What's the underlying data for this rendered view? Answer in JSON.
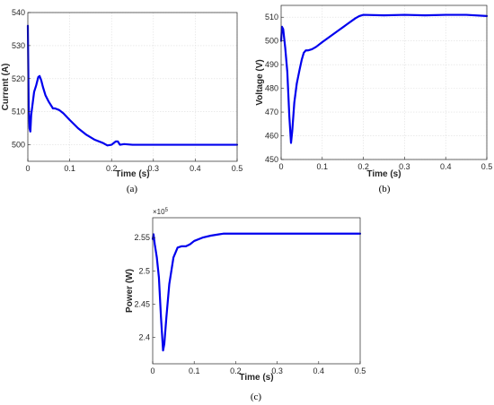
{
  "colors": {
    "series": "#0000ee",
    "axis": "#262626",
    "grid": "#dedede"
  },
  "chart_data": [
    {
      "type": "line",
      "caption": "(a)",
      "xlabel": "Time (s)",
      "ylabel": "Current (A)",
      "xlim": [
        0,
        0.5
      ],
      "ylim": [
        495,
        540
      ],
      "xticks": [
        0,
        0.1,
        0.2,
        0.3,
        0.4,
        0.5
      ],
      "xtick_labels": [
        "0",
        "0.1",
        "0.2",
        "0.3",
        "0.4",
        "0.5"
      ],
      "yticks": [
        500,
        510,
        520,
        530,
        540
      ],
      "ytick_labels": [
        "500",
        "510",
        "520",
        "530",
        "540"
      ],
      "grid": true,
      "exponent": null,
      "series": [
        {
          "x": [
            0,
            0.002,
            0.004,
            0.006,
            0.008,
            0.011,
            0.015,
            0.02,
            0.025,
            0.028,
            0.032,
            0.036,
            0.042,
            0.05,
            0.06,
            0.065,
            0.075,
            0.085,
            0.1,
            0.12,
            0.14,
            0.16,
            0.18,
            0.19,
            0.2,
            0.21,
            0.215,
            0.22,
            0.23,
            0.25,
            0.3,
            0.35,
            0.4,
            0.45,
            0.5
          ],
          "y": [
            536,
            512,
            505,
            504,
            509,
            512,
            516,
            518,
            520.5,
            520.8,
            519.5,
            517.5,
            515,
            513,
            511,
            511,
            510.5,
            509.5,
            507.5,
            505,
            503,
            501.5,
            500.5,
            499.8,
            500,
            501,
            501,
            500,
            500.2,
            500,
            500,
            500,
            500,
            500,
            500
          ]
        }
      ]
    },
    {
      "type": "line",
      "caption": "(b)",
      "xlabel": "Time (s)",
      "ylabel": "Voltage (V)",
      "xlim": [
        0,
        0.5
      ],
      "ylim": [
        450,
        515
      ],
      "xticks": [
        0,
        0.1,
        0.2,
        0.3,
        0.4,
        0.5
      ],
      "xtick_labels": [
        "0",
        "0.1",
        "0.2",
        "0.3",
        "0.4",
        "0.5"
      ],
      "yticks": [
        450,
        460,
        470,
        480,
        490,
        500,
        510
      ],
      "ytick_labels": [
        "450",
        "460",
        "470",
        "480",
        "490",
        "500",
        "510"
      ],
      "grid": true,
      "exponent": null,
      "series": [
        {
          "x": [
            0,
            0.002,
            0.005,
            0.01,
            0.015,
            0.02,
            0.024,
            0.027,
            0.032,
            0.038,
            0.045,
            0.05,
            0.055,
            0.06,
            0.065,
            0.075,
            0.085,
            0.1,
            0.12,
            0.14,
            0.16,
            0.18,
            0.19,
            0.2,
            0.25,
            0.3,
            0.35,
            0.4,
            0.45,
            0.5
          ],
          "y": [
            500,
            506,
            505,
            497,
            487,
            468,
            457,
            462,
            474,
            482,
            488,
            492,
            495,
            496,
            496,
            496.5,
            497.5,
            499.5,
            502,
            504.5,
            507,
            509.5,
            510.5,
            511,
            510.8,
            511,
            510.8,
            511,
            511,
            510.5
          ]
        }
      ]
    },
    {
      "type": "line",
      "caption": "(c)",
      "xlabel": "Time (s)",
      "ylabel": "Power (W)",
      "xlim": [
        0,
        0.5
      ],
      "ylim": [
        2.36,
        2.58
      ],
      "xticks": [
        0,
        0.1,
        0.2,
        0.3,
        0.4,
        0.5
      ],
      "xtick_labels": [
        "0",
        "0.1",
        "0.2",
        "0.3",
        "0.4",
        "0.5"
      ],
      "yticks": [
        2.4,
        2.45,
        2.5,
        2.55
      ],
      "ytick_labels": [
        "2.4",
        "2.45",
        "2.5",
        "2.55"
      ],
      "grid": false,
      "exponent": {
        "base": "×10",
        "power": "5"
      },
      "series": [
        {
          "x": [
            0,
            0.002,
            0.005,
            0.01,
            0.015,
            0.02,
            0.025,
            0.028,
            0.033,
            0.04,
            0.05,
            0.06,
            0.07,
            0.08,
            0.09,
            0.1,
            0.12,
            0.14,
            0.16,
            0.17,
            0.2,
            0.3,
            0.4,
            0.5
          ],
          "y": [
            2.548,
            2.555,
            2.54,
            2.52,
            2.49,
            2.43,
            2.38,
            2.39,
            2.43,
            2.48,
            2.52,
            2.535,
            2.537,
            2.537,
            2.54,
            2.545,
            2.55,
            2.553,
            2.555,
            2.556,
            2.556,
            2.556,
            2.556,
            2.556
          ]
        }
      ]
    }
  ]
}
